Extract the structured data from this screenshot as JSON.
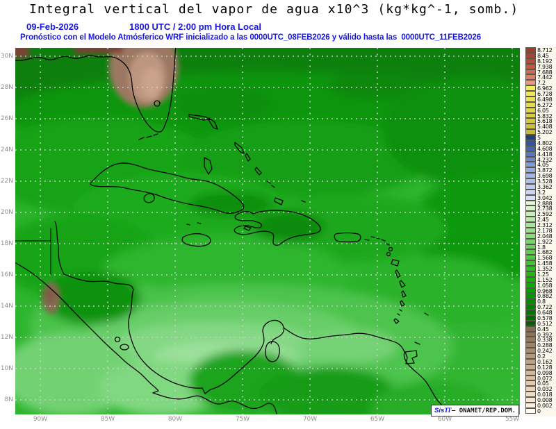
{
  "header": {
    "title": "Integral vertical del vapor de agua x10^3 (kg*kg^-1, somb.)",
    "date": "09-Feb-2026",
    "time": "1800 UTC / 2:00 pm Hora Local",
    "forecast_note": "Pronóstico con el Modelo Atmósferico WRF inicializado a las 0000UTC_08FEB2026 y válido hasta las  0000UTC_11FEB2026"
  },
  "colors": {
    "header_blue": "#1616E0",
    "axis_gray": "#8F8F8F",
    "sea_base_green": "#2EB52E"
  },
  "map": {
    "lat_labels": [
      "30N",
      "28N",
      "26N",
      "24N",
      "22N",
      "20N",
      "18N",
      "16N",
      "14N",
      "12N",
      "10N",
      "8N"
    ],
    "lon_labels": [
      "90W",
      "85W",
      "80W",
      "75W",
      "70W",
      "65W",
      "60W",
      "55W"
    ]
  },
  "colorbar": {
    "values": [
      "8.712",
      "8.45",
      "8.192",
      "7.938",
      "7.688",
      "7.442",
      "7.2",
      "6.962",
      "6.728",
      "6.498",
      "6.272",
      "6.05",
      "5.832",
      "5.618",
      "5.408",
      "5.202",
      "5",
      "4.802",
      "4.608",
      "4.418",
      "4.232",
      "4.05",
      "3.872",
      "3.698",
      "3.528",
      "3.362",
      "3.2",
      "3.042",
      "2.888",
      "2.738",
      "2.592",
      "2.45",
      "2.312",
      "2.178",
      "2.048",
      "1.922",
      "1.8",
      "1.682",
      "1.568",
      "1.458",
      "1.352",
      "1.25",
      "1.152",
      "1.058",
      "0.968",
      "0.882",
      "0.8",
      "0.722",
      "0.648",
      "0.578",
      "0.512",
      "0.45",
      "0.392",
      "0.338",
      "0.288",
      "0.242",
      "0.2",
      "0.162",
      "0.128",
      "0.098",
      "0.072",
      "0.05",
      "0.032",
      "0.018",
      "0.008",
      "0.002",
      "0"
    ],
    "colors": [
      "#9A4030",
      "#A84434",
      "#B44C3A",
      "#C05844",
      "#CC6C54",
      "#D88066",
      "#E89688",
      "#F4EE58",
      "#F0E854",
      "#EAE250",
      "#E4DC4C",
      "#DED648",
      "#D8CF44",
      "#D2C840",
      "#CBC13C",
      "#C4BA38",
      "#20407C",
      "#34549C",
      "#4866AC",
      "#5C78BC",
      "#6E8AC8",
      "#809CD4",
      "#92ACDE",
      "#A2B8E6",
      "#B0C2EC",
      "#BECCF0",
      "#CAD6F4",
      "#D6E0F8",
      "#E2F8DA",
      "#D4F4CA",
      "#C5EFBA",
      "#B6EAAB",
      "#A7E59C",
      "#98E08D",
      "#89DB7E",
      "#7AD66F",
      "#6BD160",
      "#5CCC51",
      "#4DC742",
      "#3EC233",
      "#2FBD24",
      "#20B815",
      "#14B20B",
      "#08AC04",
      "#00A400",
      "#009A00",
      "#008E00",
      "#008200",
      "#007600",
      "#056805",
      "#0A5A0A",
      "#8A6C55",
      "#907158",
      "#98795F",
      "#A28367",
      "#AC8D70",
      "#B69779",
      "#C0A183",
      "#CAAB8D",
      "#D4B597",
      "#DDBFA2",
      "#E4C9AE",
      "#EBD3BA",
      "#F1DCC7",
      "#F6E5D4",
      "#FAEEE2",
      "#FEFAF6"
    ]
  },
  "watermark": {
    "prefix": "Sis",
    "logo": "TT",
    "rest": "– ONAMET/REP.DOM."
  }
}
